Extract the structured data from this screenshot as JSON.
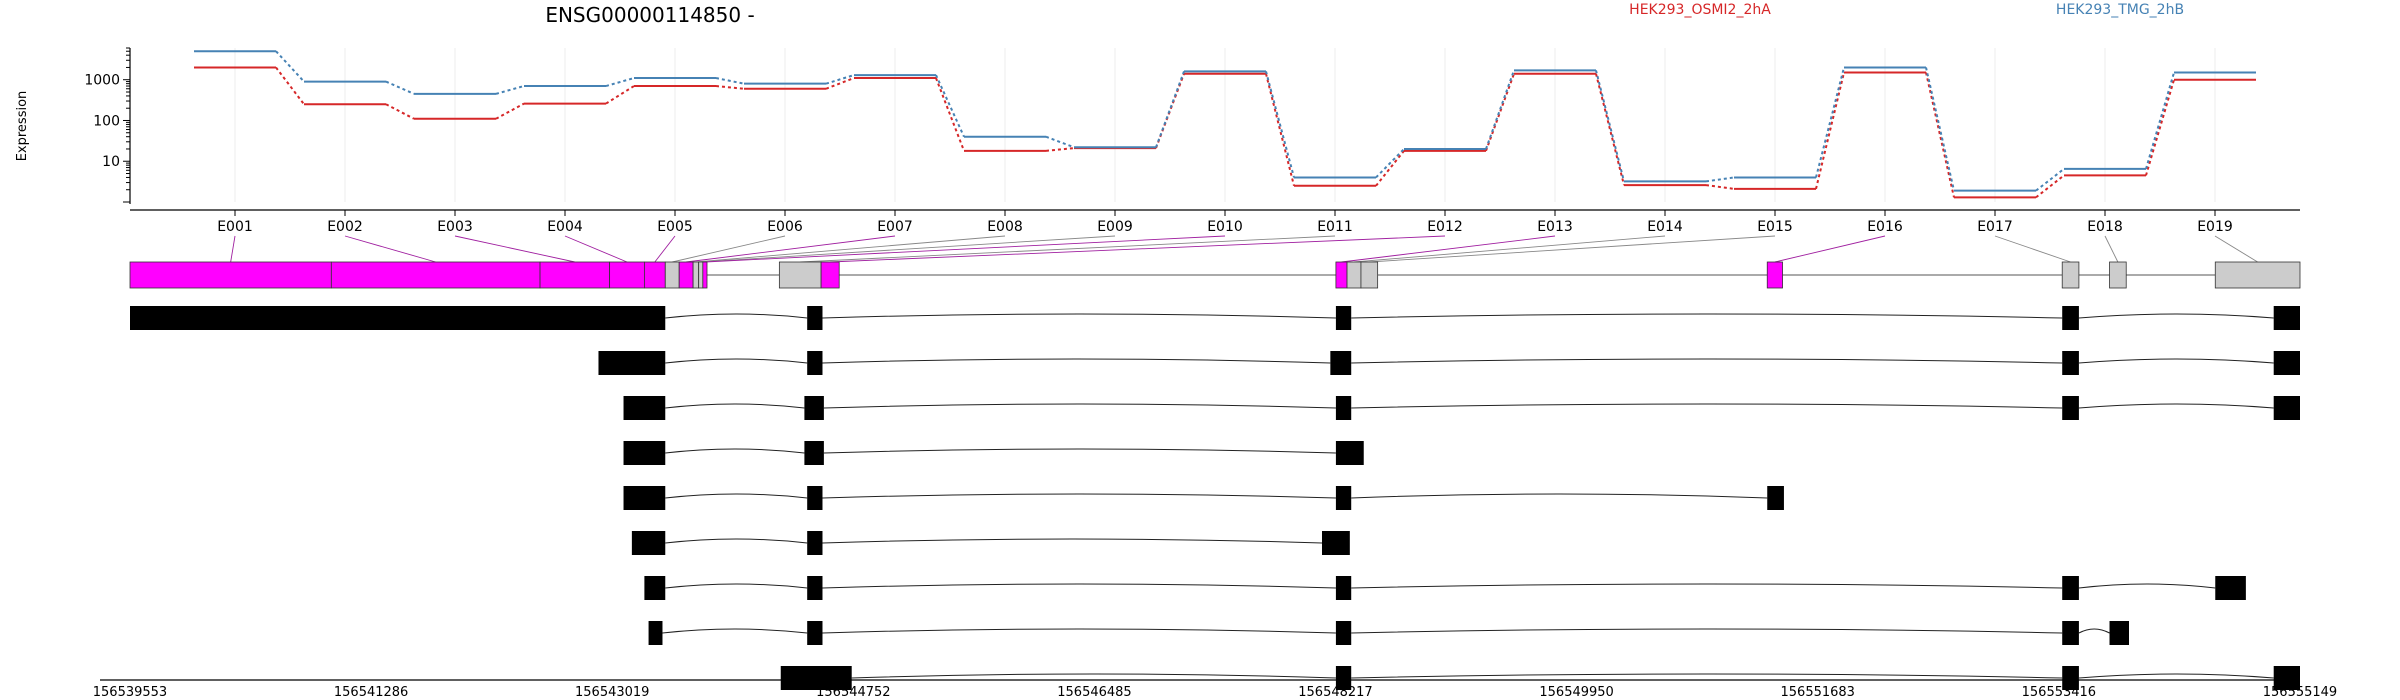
{
  "chart_data": {
    "type": "line",
    "title": "ENSG00000114850 -",
    "ylabel": "Expression",
    "yscale": "log",
    "ylim": [
      1,
      6000
    ],
    "y_ticks": [
      {
        "value": 10,
        "label": "10"
      },
      {
        "value": 100,
        "label": "100"
      },
      {
        "value": 1000,
        "label": "1000"
      }
    ],
    "categories": [
      "E001",
      "E002",
      "E003",
      "E004",
      "E005",
      "E006",
      "E007",
      "E008",
      "E009",
      "E010",
      "E011",
      "E012",
      "E013",
      "E014",
      "E015",
      "E016",
      "E017",
      "E018",
      "E019"
    ],
    "series": [
      {
        "name": "HEK293_OSMI2_2hA",
        "color": "#d62728",
        "values": [
          2000,
          250,
          110,
          260,
          700,
          600,
          1100,
          18,
          21,
          1400,
          2.5,
          18,
          1400,
          2.6,
          2.1,
          1500,
          1.3,
          4.5,
          1000
        ]
      },
      {
        "name": "HEK293_TMG_2hB",
        "color": "#4682b4",
        "values": [
          5000,
          900,
          450,
          700,
          1100,
          800,
          1300,
          40,
          22,
          1600,
          4,
          20,
          1700,
          3.2,
          4,
          2000,
          1.9,
          6.5,
          1500
        ]
      }
    ],
    "gene_model": {
      "highlight_color": "#ff00ff",
      "highlighted_exons": [
        "E001",
        "E002",
        "E003",
        "E004",
        "E005",
        "E007",
        "E010",
        "E012",
        "E013",
        "E016"
      ],
      "exons": [
        {
          "id": "E001",
          "start": 156539553,
          "end": 156541000
        },
        {
          "id": "E002",
          "start": 156541000,
          "end": 156542500
        },
        {
          "id": "E003",
          "start": 156542500,
          "end": 156543000
        },
        {
          "id": "E004",
          "start": 156543000,
          "end": 156543250
        },
        {
          "id": "E005",
          "start": 156543250,
          "end": 156543400
        },
        {
          "id": "E006",
          "start": 156543400,
          "end": 156543500
        },
        {
          "id": "E007",
          "start": 156543500,
          "end": 156543600
        },
        {
          "id": "E008",
          "start": 156543600,
          "end": 156543640
        },
        {
          "id": "E009",
          "start": 156543640,
          "end": 156543670
        },
        {
          "id": "E010",
          "start": 156543670,
          "end": 156543700
        },
        {
          "id": "E011",
          "start": 156544220,
          "end": 156544520
        },
        {
          "id": "E012",
          "start": 156544520,
          "end": 156544650
        },
        {
          "id": "E013",
          "start": 156548220,
          "end": 156548300
        },
        {
          "id": "E014",
          "start": 156548300,
          "end": 156548400
        },
        {
          "id": "E015",
          "start": 156548400,
          "end": 156548520
        },
        {
          "id": "E016",
          "start": 156551320,
          "end": 156551430
        },
        {
          "id": "E017",
          "start": 156553440,
          "end": 156553560
        },
        {
          "id": "E018",
          "start": 156553780,
          "end": 156553900
        },
        {
          "id": "E019",
          "start": 156554540,
          "end": 156555149
        }
      ]
    },
    "transcripts": [
      [
        [
          156539553,
          156543400
        ],
        [
          156544420,
          156544530
        ],
        [
          156548220,
          156548330
        ],
        [
          156553440,
          156553560
        ],
        [
          156554960,
          156555149
        ]
      ],
      [
        [
          156542920,
          156543400
        ],
        [
          156544420,
          156544530
        ],
        [
          156548180,
          156548330
        ],
        [
          156553440,
          156553560
        ],
        [
          156554960,
          156555149
        ]
      ],
      [
        [
          156543100,
          156543400
        ],
        [
          156544400,
          156544540
        ],
        [
          156548220,
          156548330
        ],
        [
          156553440,
          156553560
        ],
        [
          156554960,
          156555149
        ]
      ],
      [
        [
          156543100,
          156543400
        ],
        [
          156544400,
          156544540
        ],
        [
          156548220,
          156548420
        ]
      ],
      [
        [
          156543100,
          156543400
        ],
        [
          156544420,
          156544530
        ],
        [
          156548220,
          156548330
        ],
        [
          156551320,
          156551440
        ]
      ],
      [
        [
          156543160,
          156543400
        ],
        [
          156544420,
          156544530
        ],
        [
          156548120,
          156548320
        ]
      ],
      [
        [
          156543250,
          156543400
        ],
        [
          156544420,
          156544530
        ],
        [
          156548220,
          156548330
        ],
        [
          156553440,
          156553560
        ],
        [
          156554540,
          156554760
        ]
      ],
      [
        [
          156543280,
          156543380
        ],
        [
          156544420,
          156544530
        ],
        [
          156548220,
          156548330
        ],
        [
          156553440,
          156553560
        ],
        [
          156553780,
          156553920
        ]
      ],
      [
        [
          156544230,
          156544740
        ],
        [
          156548220,
          156548330
        ],
        [
          156553440,
          156553560
        ],
        [
          156554960,
          156555149
        ]
      ]
    ],
    "genomic_axis": {
      "range": [
        156539553,
        156555149
      ],
      "ticks": [
        156539553,
        156541286,
        156543019,
        156544752,
        156546485,
        156548217,
        156549950,
        156551683,
        156553416,
        156555149
      ]
    }
  }
}
